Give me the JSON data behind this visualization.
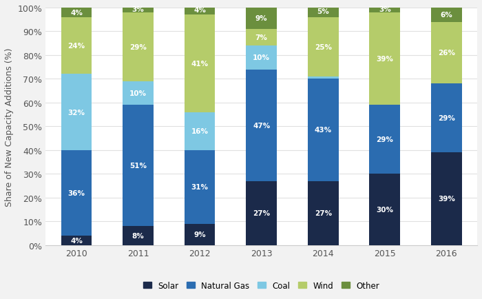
{
  "years": [
    "2010",
    "2011",
    "2012",
    "2013",
    "2014",
    "2015",
    "2016"
  ],
  "solar": [
    4,
    8,
    9,
    27,
    27,
    30,
    39
  ],
  "natural_gas": [
    36,
    51,
    31,
    47,
    43,
    29,
    29
  ],
  "coal": [
    32,
    10,
    16,
    10,
    1,
    0,
    0
  ],
  "wind": [
    24,
    29,
    41,
    7,
    25,
    39,
    26
  ],
  "other": [
    4,
    3,
    4,
    9,
    5,
    3,
    6
  ],
  "colors": {
    "solar": "#1b2a4a",
    "natural_gas": "#2b6cb0",
    "coal": "#7ec8e3",
    "wind": "#b5cc6a",
    "other": "#6b8f3e"
  },
  "ylabel": "Share of New Capacity Additions (%)",
  "background_color": "#f2f2f2",
  "plot_bg_color": "#ffffff",
  "bar_width": 0.5,
  "ylim": [
    0,
    100
  ]
}
